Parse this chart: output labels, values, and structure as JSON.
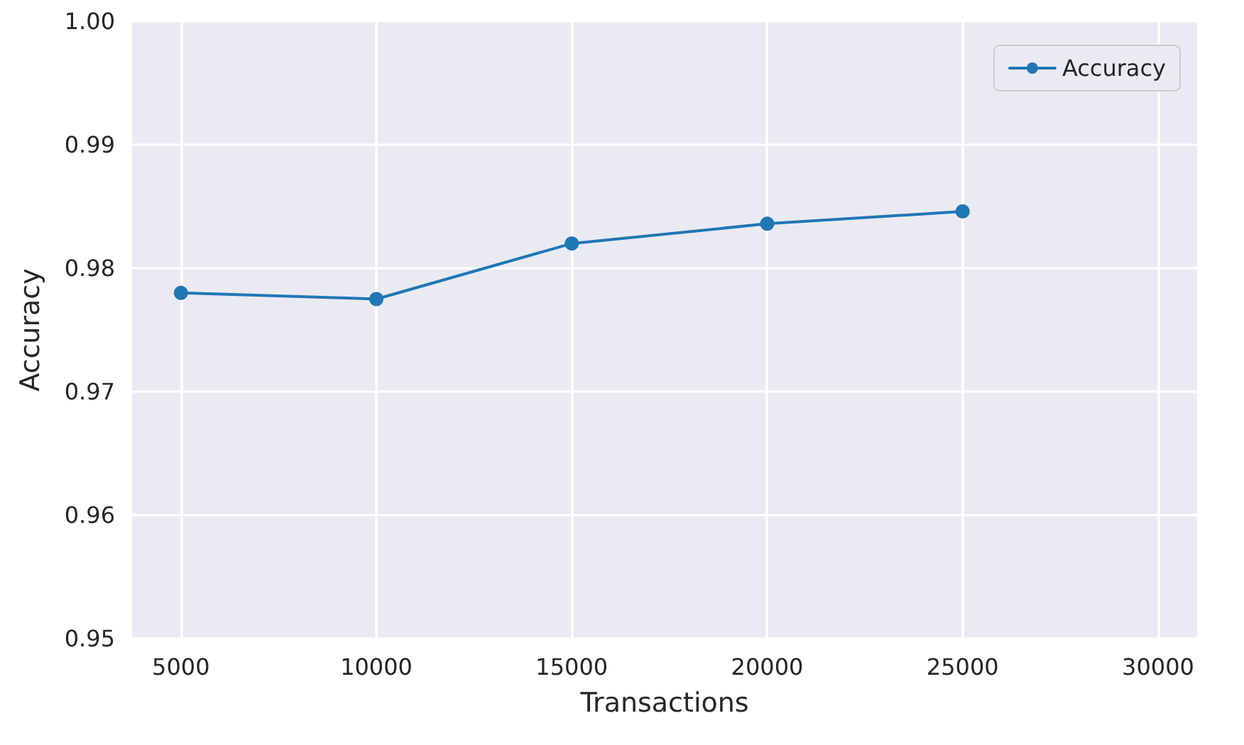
{
  "chart_data": {
    "type": "line",
    "xlabel": "Transactions",
    "ylabel": "Accuracy",
    "x": [
      5000,
      10000,
      15000,
      20000,
      25000
    ],
    "series": [
      {
        "name": "Accuracy",
        "color": "#1f77b4",
        "values": [
          0.978,
          0.9775,
          0.982,
          0.9836,
          0.9846
        ]
      }
    ],
    "xlim": [
      3750,
      31000
    ],
    "xticks": [
      5000,
      10000,
      15000,
      20000,
      25000,
      30000
    ],
    "ylim": [
      0.95,
      1.0
    ],
    "yticks": [
      0.95,
      0.96,
      0.97,
      0.98,
      0.99,
      {
        "value": 1.0,
        "label": "1.00"
      }
    ],
    "grid": true,
    "legend": "top right",
    "marker": "circle",
    "line_style": "solid"
  }
}
